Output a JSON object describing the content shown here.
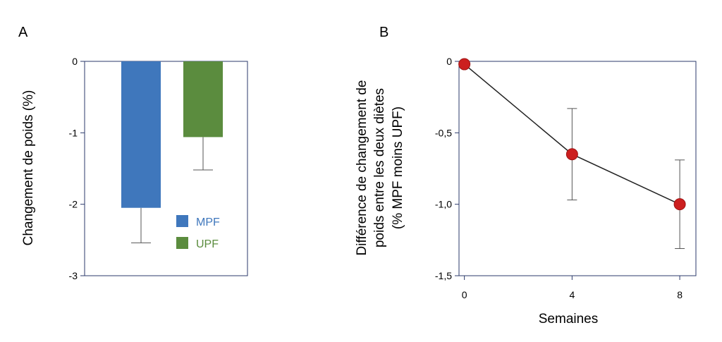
{
  "figure": {
    "panel_a_letter": "A",
    "panel_b_letter": "B"
  },
  "chart_data": [
    {
      "type": "bar",
      "panel": "A",
      "title": "",
      "xlabel": "",
      "ylabel": "Changement de poids (%)",
      "ylim": [
        -3,
        0
      ],
      "yticks": [
        0,
        -1,
        -2,
        -3
      ],
      "ytick_labels": [
        "0",
        "-1",
        "-2",
        "-3"
      ],
      "categories": [
        "MPF",
        "UPF"
      ],
      "values": [
        -2.05,
        -1.06
      ],
      "errors": [
        0.49,
        0.46
      ],
      "colors": [
        "#3f77bc",
        "#5b8c3e"
      ],
      "legend": {
        "position": "bottom-right",
        "entries": [
          {
            "label": "MPF",
            "color": "#3f77bc"
          },
          {
            "label": "UPF",
            "color": "#5b8c3e"
          }
        ]
      },
      "grid": false
    },
    {
      "type": "line",
      "panel": "B",
      "title": "",
      "xlabel": "Semaines",
      "ylabel_lines": [
        "Différence de changement de",
        "poids entre les deux diètes",
        "(%  MPF moins UPF)"
      ],
      "x": [
        0,
        4,
        8
      ],
      "y": [
        -0.02,
        -0.65,
        -1.0
      ],
      "errors": [
        0,
        0.32,
        0.31
      ],
      "xticks": [
        0,
        4,
        8
      ],
      "xtick_labels": [
        "0",
        "4",
        "8"
      ],
      "yticks": [
        0,
        -0.5,
        -1.0,
        -1.5
      ],
      "ytick_labels": [
        "0",
        "-0,5",
        "-1,0",
        "-1,5"
      ],
      "ylim": [
        -1.5,
        0
      ],
      "xlim": [
        -0.2,
        8.6
      ],
      "marker_color": "#cc1f1f",
      "line_color": "#222222",
      "grid": false
    }
  ]
}
